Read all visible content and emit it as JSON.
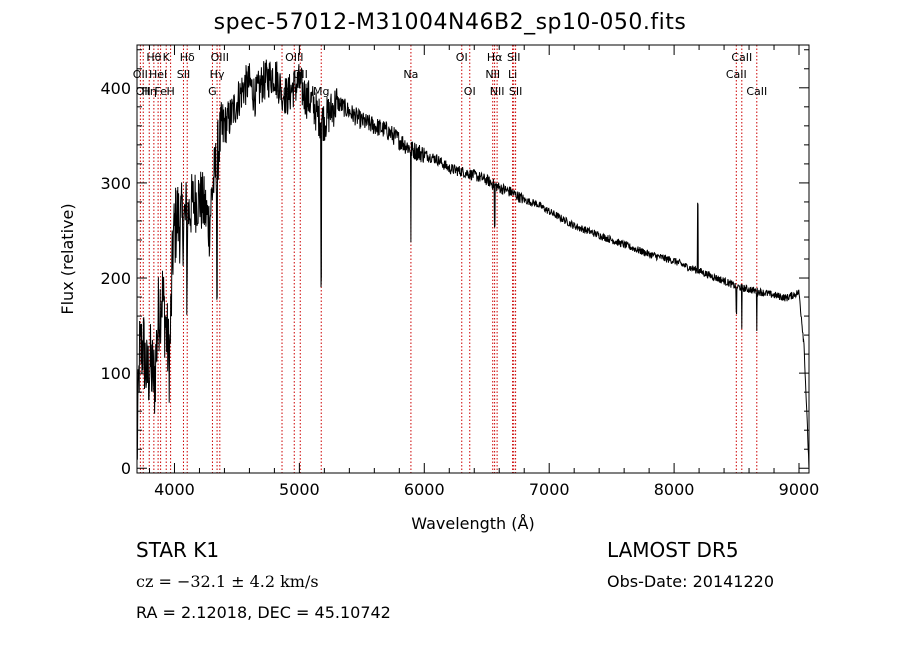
{
  "title": "spec-57012-M31004N46B2_sp10-050.fits",
  "info": {
    "class_label": "STAR     K1",
    "survey": "LAMOST  DR5",
    "redshift": "cz = −32.1 ± 4.2 km/s",
    "obs_date": "Obs-Date: 20141220",
    "coords": "RA =    2.12018, DEC =  45.10742"
  },
  "colors": {
    "spectrum": "#000000",
    "lines": "#cc0000",
    "axes": "#000000"
  },
  "chart_data": {
    "type": "line",
    "title": "spec-57012-M31004N46B2_sp10-050.fits",
    "xlabel": "Wavelength (Å)",
    "ylabel": "Flux (relative)",
    "xlim": [
      3700,
      9080
    ],
    "ylim": [
      -5,
      445
    ],
    "xticks": [
      4000,
      5000,
      6000,
      7000,
      8000,
      9000
    ],
    "yticks": [
      0,
      100,
      200,
      300,
      400
    ],
    "grid": false,
    "series": [
      {
        "x": [
          3700,
          3720,
          3750,
          3780,
          3810,
          3840,
          3870,
          3900,
          3930,
          3960,
          3990,
          4020,
          4060,
          4100,
          4150,
          4200,
          4250,
          4280,
          4300,
          4330,
          4360,
          4400,
          4450,
          4500,
          4550,
          4600,
          4650,
          4700,
          4750,
          4800,
          4850,
          4900,
          4950,
          5000,
          5050,
          5100,
          5150,
          5200,
          5250,
          5300,
          5400,
          5500,
          5600,
          5700,
          5800,
          5900,
          6000,
          6100,
          6200,
          6300,
          6400,
          6500,
          6600,
          6700,
          6800,
          6900,
          7000,
          7200,
          7400,
          7600,
          7800,
          8000,
          8100,
          8190,
          8300,
          8400,
          8500,
          8600,
          8700,
          8800,
          8900,
          9000,
          9040,
          9080
        ],
        "y": [
          10,
          120,
          130,
          95,
          110,
          90,
          160,
          185,
          150,
          110,
          240,
          265,
          255,
          265,
          280,
          285,
          270,
          255,
          290,
          315,
          345,
          360,
          370,
          385,
          400,
          405,
          390,
          405,
          410,
          415,
          400,
          390,
          400,
          405,
          390,
          385,
          370,
          365,
          375,
          385,
          375,
          365,
          360,
          355,
          345,
          335,
          330,
          325,
          315,
          312,
          308,
          303,
          295,
          290,
          282,
          278,
          270,
          255,
          245,
          235,
          225,
          218,
          212,
          208,
          202,
          197,
          191,
          188,
          185,
          182,
          179,
          185,
          130,
          0
        ]
      }
    ],
    "features": [
      {
        "x": 4101,
        "kind": "spike",
        "depth": -70
      },
      {
        "x": 4340,
        "kind": "spike",
        "depth": -140
      },
      {
        "x": 4861,
        "kind": "spike",
        "depth": -30
      },
      {
        "x": 5175,
        "kind": "spike",
        "depth": -160
      },
      {
        "x": 5893,
        "kind": "spike",
        "depth": -100
      },
      {
        "x": 6563,
        "kind": "spike",
        "depth": -45
      },
      {
        "x": 8190,
        "kind": "spike",
        "depth": 70
      },
      {
        "x": 8498,
        "kind": "spike",
        "depth": -30
      },
      {
        "x": 8542,
        "kind": "spike",
        "depth": -45
      },
      {
        "x": 8662,
        "kind": "spike",
        "depth": -40
      }
    ],
    "line_markers": [
      {
        "x": 3727,
        "row": 1,
        "label": "OII"
      },
      {
        "x": 3750,
        "row": 2,
        "label": "OII"
      },
      {
        "x": 3798,
        "row": 2,
        "label": "H&#951;"
      },
      {
        "x": 3835,
        "row": 0,
        "label": "H&#952;"
      },
      {
        "x": 3869,
        "row": 1,
        "label": "HeI"
      },
      {
        "x": 3889,
        "row": 2,
        "label": "Fe"
      },
      {
        "x": 3934,
        "row": 0,
        "label": "K"
      },
      {
        "x": 3969,
        "row": 2,
        "label": "H"
      },
      {
        "x": 4072,
        "row": 1,
        "label": "SII"
      },
      {
        "x": 4102,
        "row": 0,
        "label": "H&#948;"
      },
      {
        "x": 4304,
        "row": 2,
        "label": "G"
      },
      {
        "x": 4341,
        "row": 1,
        "label": "H&#947;"
      },
      {
        "x": 4363,
        "row": 0,
        "label": "OIII"
      },
      {
        "x": 4861,
        "row": 2,
        "label": "H&#946;"
      },
      {
        "x": 4959,
        "row": 0,
        "label": "OIII"
      },
      {
        "x": 5007,
        "row": 1,
        "label": "OII"
      },
      {
        "x": 5175,
        "row": 2,
        "label": "Mg"
      },
      {
        "x": 5893,
        "row": 1,
        "label": "Na"
      },
      {
        "x": 6300,
        "row": 0,
        "label": "OI"
      },
      {
        "x": 6364,
        "row": 2,
        "label": "OI"
      },
      {
        "x": 6548,
        "row": 1,
        "label": "NII"
      },
      {
        "x": 6563,
        "row": 0,
        "label": "H&#945;"
      },
      {
        "x": 6583,
        "row": 2,
        "label": "NII"
      },
      {
        "x": 6707,
        "row": 1,
        "label": "Li"
      },
      {
        "x": 6716,
        "row": 0,
        "label": "SII"
      },
      {
        "x": 6731,
        "row": 2,
        "label": "SII"
      },
      {
        "x": 8498,
        "row": 1,
        "label": "CaII"
      },
      {
        "x": 8542,
        "row": 0,
        "label": "CaII"
      },
      {
        "x": 8662,
        "row": 2,
        "label": "CaII"
      }
    ]
  }
}
